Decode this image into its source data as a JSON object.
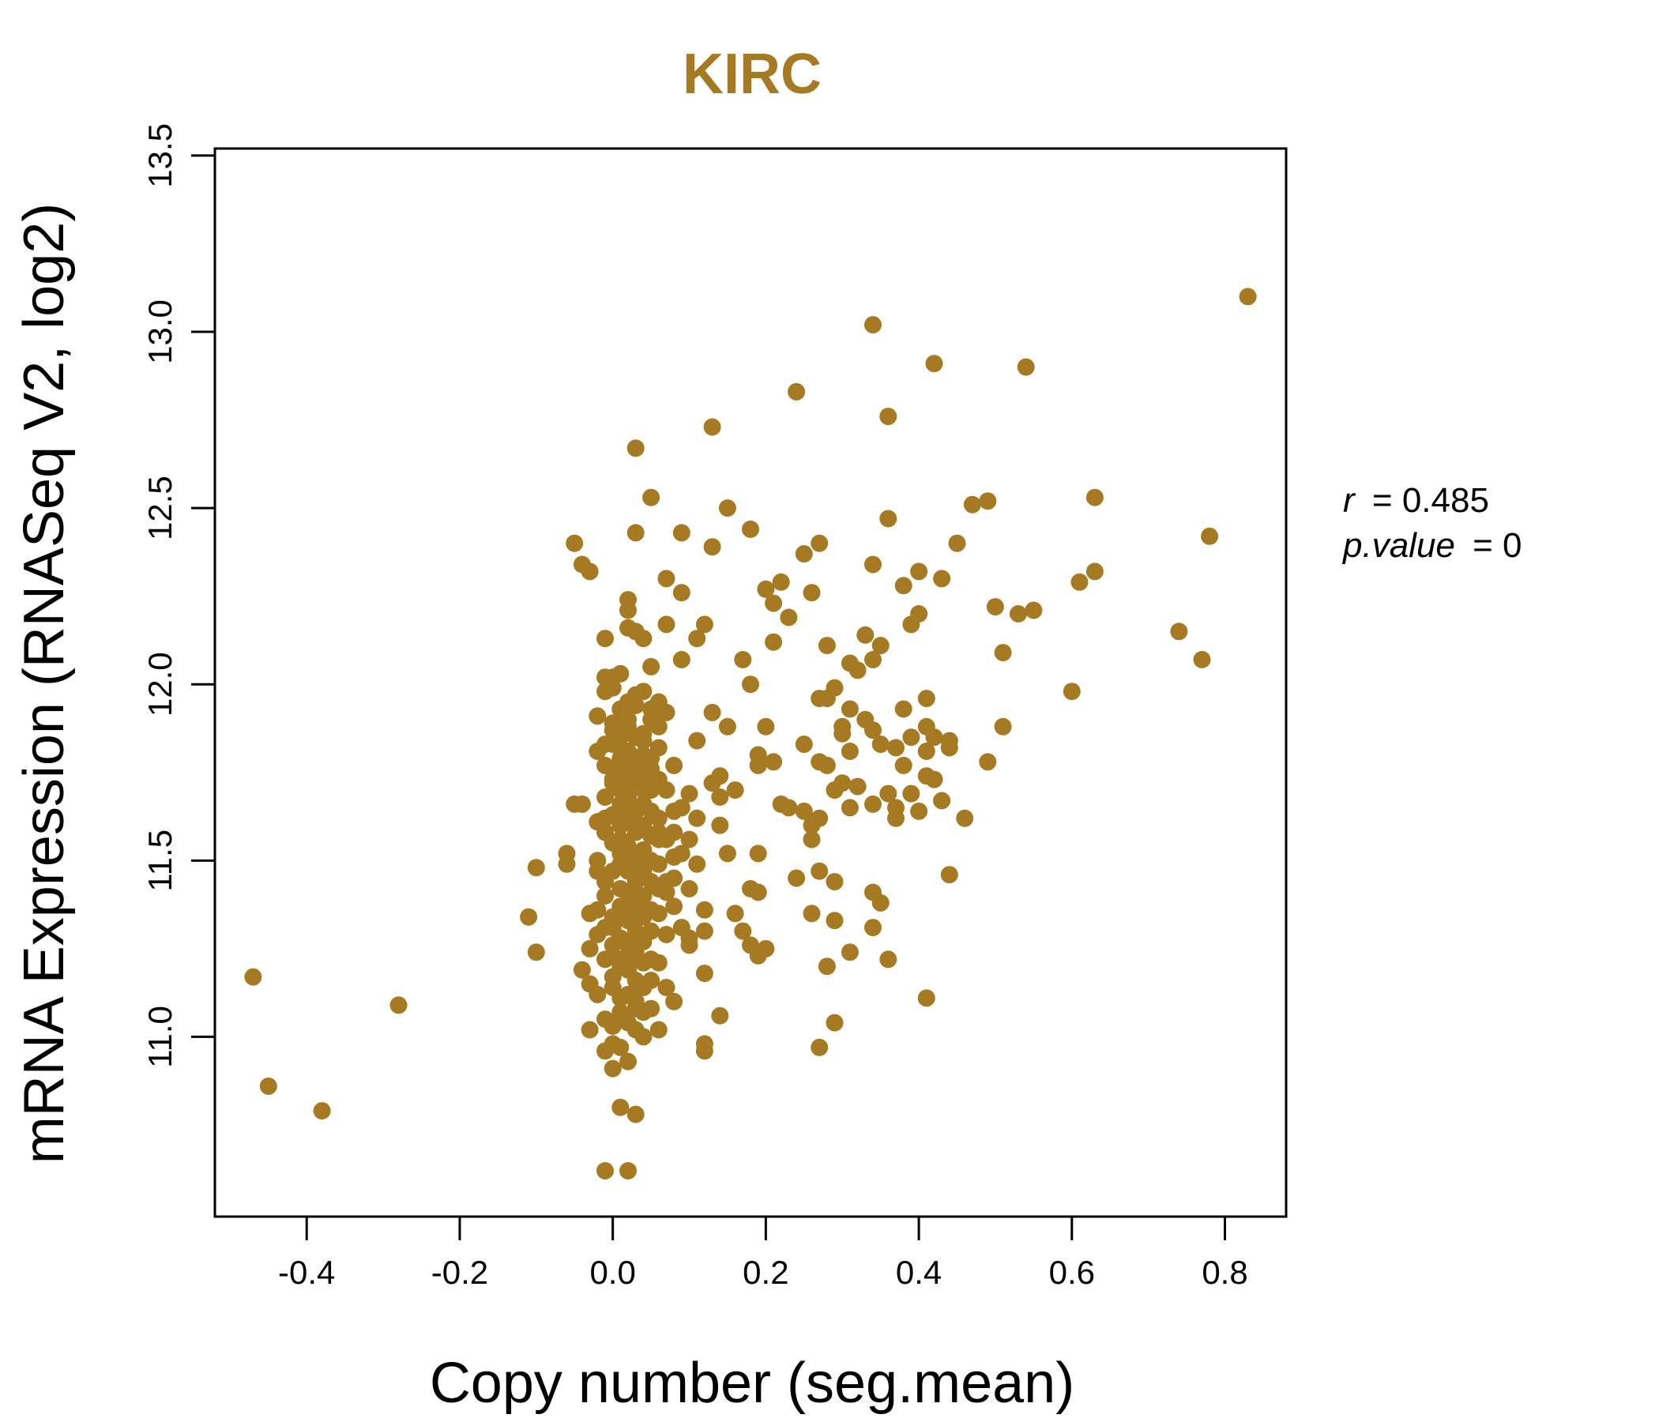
{
  "chart_data": {
    "type": "scatter",
    "title": "KIRC",
    "xlabel": "Copy number (seg.mean)",
    "ylabel": "mRNA Expression (RNASeq V2, log2)",
    "xlim": [
      -0.52,
      0.88
    ],
    "ylim": [
      10.49,
      13.52
    ],
    "x_ticks": [
      -0.4,
      -0.2,
      0.0,
      0.2,
      0.4,
      0.6,
      0.8
    ],
    "x_tick_labels": [
      "-0.4",
      "-0.2",
      "0.0",
      "0.2",
      "0.4",
      "0.6",
      "0.8"
    ],
    "y_ticks": [
      11.0,
      11.5,
      12.0,
      12.5,
      13.0,
      13.5
    ],
    "y_tick_labels": [
      "11.0",
      "11.5",
      "12.0",
      "12.5",
      "13.0",
      "13.5"
    ],
    "grid": false,
    "point_color": "#A67A22",
    "stats": {
      "r_label": "r",
      "r_value": "0.485",
      "p_label": "p.value",
      "p_value": "0"
    },
    "series": [
      {
        "x": [
          -0.47,
          -0.45,
          -0.38,
          -0.28,
          -0.11,
          -0.1,
          -0.1,
          -0.06,
          -0.06,
          -0.05,
          -0.05,
          -0.04,
          -0.04,
          -0.04,
          -0.03,
          -0.03,
          -0.03,
          -0.03,
          -0.03,
          -0.02,
          -0.02,
          -0.02,
          -0.02,
          -0.02,
          -0.02,
          -0.02,
          -0.02,
          -0.01,
          -0.01,
          -0.01,
          -0.01,
          -0.01,
          -0.01,
          -0.01,
          -0.01,
          -0.01,
          -0.01,
          -0.01,
          -0.01,
          -0.01,
          -0.01,
          -0.01,
          0.0,
          0.0,
          0.0,
          0.0,
          0.0,
          0.0,
          0.0,
          0.0,
          0.0,
          0.0,
          0.0,
          0.0,
          0.0,
          0.0,
          0.0,
          0.0,
          0.0,
          0.0,
          0.0,
          0.0,
          0.01,
          0.01,
          0.01,
          0.01,
          0.01,
          0.01,
          0.01,
          0.01,
          0.01,
          0.01,
          0.01,
          0.01,
          0.01,
          0.01,
          0.01,
          0.01,
          0.01,
          0.01,
          0.01,
          0.01,
          0.01,
          0.01,
          0.01,
          0.01,
          0.02,
          0.02,
          0.02,
          0.02,
          0.02,
          0.02,
          0.02,
          0.02,
          0.02,
          0.02,
          0.02,
          0.02,
          0.02,
          0.02,
          0.02,
          0.02,
          0.02,
          0.02,
          0.02,
          0.02,
          0.02,
          0.02,
          0.02,
          0.02,
          0.03,
          0.03,
          0.03,
          0.03,
          0.03,
          0.03,
          0.03,
          0.03,
          0.03,
          0.03,
          0.03,
          0.03,
          0.03,
          0.03,
          0.03,
          0.03,
          0.03,
          0.03,
          0.03,
          0.03,
          0.03,
          0.03,
          0.03,
          0.04,
          0.04,
          0.04,
          0.04,
          0.04,
          0.04,
          0.04,
          0.04,
          0.04,
          0.04,
          0.04,
          0.04,
          0.04,
          0.04,
          0.04,
          0.04,
          0.04,
          0.04,
          0.04,
          0.04,
          0.05,
          0.05,
          0.05,
          0.05,
          0.05,
          0.05,
          0.05,
          0.05,
          0.05,
          0.05,
          0.05,
          0.05,
          0.05,
          0.05,
          0.05,
          0.05,
          0.06,
          0.06,
          0.06,
          0.06,
          0.06,
          0.06,
          0.06,
          0.06,
          0.06,
          0.06,
          0.06,
          0.06,
          0.07,
          0.07,
          0.07,
          0.07,
          0.07,
          0.07,
          0.07,
          0.07,
          0.07,
          0.08,
          0.08,
          0.08,
          0.08,
          0.08,
          0.08,
          0.08,
          0.09,
          0.09,
          0.09,
          0.09,
          0.09,
          0.09,
          0.1,
          0.1,
          0.1,
          0.1,
          0.1,
          0.11,
          0.11,
          0.11,
          0.11,
          0.12,
          0.12,
          0.12,
          0.12,
          0.12,
          0.12,
          0.13,
          0.13,
          0.13,
          0.13,
          0.14,
          0.14,
          0.14,
          0.14,
          0.15,
          0.15,
          0.15,
          0.16,
          0.16,
          0.17,
          0.17,
          0.18,
          0.18,
          0.18,
          0.18,
          0.19,
          0.19,
          0.19,
          0.19,
          0.19,
          0.2,
          0.2,
          0.2,
          0.21,
          0.21,
          0.21,
          0.22,
          0.22,
          0.23,
          0.23,
          0.24,
          0.24,
          0.25,
          0.25,
          0.25,
          0.26,
          0.26,
          0.26,
          0.26,
          0.27,
          0.27,
          0.27,
          0.27,
          0.27,
          0.27,
          0.28,
          0.28,
          0.28,
          0.28,
          0.29,
          0.29,
          0.29,
          0.29,
          0.29,
          0.3,
          0.3,
          0.3,
          0.31,
          0.31,
          0.31,
          0.31,
          0.31,
          0.32,
          0.32,
          0.33,
          0.33,
          0.34,
          0.34,
          0.34,
          0.34,
          0.34,
          0.34,
          0.34,
          0.35,
          0.35,
          0.35,
          0.36,
          0.36,
          0.36,
          0.36,
          0.37,
          0.37,
          0.37,
          0.38,
          0.38,
          0.38,
          0.39,
          0.39,
          0.39,
          0.4,
          0.4,
          0.4,
          0.41,
          0.41,
          0.41,
          0.41,
          0.41,
          0.42,
          0.42,
          0.42,
          0.43,
          0.43,
          0.44,
          0.44,
          0.44,
          0.45,
          0.46,
          0.47,
          0.49,
          0.49,
          0.5,
          0.51,
          0.51,
          0.53,
          0.54,
          0.55,
          0.6,
          0.61,
          0.63,
          0.63,
          0.74,
          0.77,
          0.78,
          0.83
        ],
        "y": [
          11.17,
          10.86,
          10.79,
          11.09,
          11.34,
          11.24,
          11.48,
          11.52,
          11.49,
          11.66,
          12.4,
          12.34,
          11.19,
          11.66,
          12.32,
          11.35,
          11.02,
          11.15,
          11.25,
          11.47,
          11.91,
          11.61,
          11.36,
          11.12,
          11.29,
          11.5,
          11.81,
          12.13,
          11.98,
          11.83,
          11.77,
          11.62,
          11.44,
          11.31,
          11.22,
          10.96,
          10.62,
          12.02,
          11.68,
          11.58,
          11.4,
          11.05,
          11.26,
          11.83,
          11.89,
          11.72,
          11.55,
          11.34,
          11.17,
          10.91,
          11.99,
          11.76,
          11.63,
          11.47,
          11.23,
          11.03,
          12.02,
          11.87,
          11.73,
          11.31,
          11.14,
          10.98,
          11.93,
          11.79,
          11.66,
          11.52,
          11.37,
          11.22,
          11.07,
          10.8,
          11.85,
          11.7,
          11.56,
          11.42,
          11.28,
          11.11,
          10.97,
          11.78,
          11.64,
          11.49,
          11.36,
          11.2,
          11.06,
          12.03,
          11.82,
          11.6,
          12.24,
          12.16,
          11.88,
          11.74,
          11.61,
          11.47,
          11.33,
          11.19,
          11.04,
          10.93,
          11.95,
          11.81,
          11.68,
          11.54,
          11.41,
          11.26,
          11.12,
          10.62,
          11.69,
          11.35,
          12.21,
          11.9,
          11.76,
          11.63,
          11.49,
          11.36,
          11.22,
          11.08,
          10.78,
          11.97,
          11.85,
          11.71,
          11.58,
          11.44,
          11.3,
          11.16,
          11.02,
          11.77,
          11.64,
          11.51,
          11.38,
          11.24,
          11.1,
          12.67,
          12.43,
          12.15,
          11.94,
          11.8,
          11.66,
          11.53,
          11.4,
          11.27,
          11.14,
          11.0,
          11.86,
          11.73,
          11.6,
          11.47,
          11.34,
          11.21,
          11.07,
          11.59,
          11.46,
          12.13,
          11.98,
          11.84,
          11.7,
          11.57,
          11.44,
          11.3,
          11.16,
          11.93,
          11.79,
          11.64,
          11.5,
          11.36,
          11.22,
          11.08,
          11.7,
          12.53,
          12.05,
          11.9,
          11.76,
          11.62,
          11.49,
          11.35,
          11.21,
          11.95,
          11.82,
          11.56,
          11.42,
          11.02,
          11.88,
          11.73,
          11.58,
          11.44,
          11.29,
          11.14,
          11.92,
          11.7,
          11.56,
          11.41,
          12.3,
          12.17,
          11.77,
          11.64,
          11.51,
          11.37,
          11.1,
          11.58,
          11.45,
          11.31,
          12.43,
          12.26,
          12.07,
          11.65,
          11.52,
          11.28,
          11.69,
          11.56,
          11.42,
          11.26,
          12.13,
          11.84,
          11.62,
          11.49,
          11.36,
          11.18,
          10.98,
          12.17,
          11.3,
          10.96,
          12.39,
          12.73,
          11.72,
          11.92,
          11.68,
          11.6,
          11.06,
          11.74,
          11.52,
          12.5,
          11.88,
          11.7,
          11.35,
          11.3,
          12.07,
          12.44,
          12.0,
          11.26,
          11.42,
          11.8,
          11.23,
          11.52,
          11.41,
          11.77,
          11.88,
          12.27,
          11.25,
          12.23,
          12.12,
          11.78,
          11.66,
          12.29,
          12.19,
          11.65,
          12.83,
          11.45,
          11.83,
          11.64,
          12.37,
          12.26,
          11.56,
          11.6,
          11.35,
          12.4,
          11.96,
          11.78,
          11.62,
          11.47,
          10.97,
          12.11,
          11.96,
          11.77,
          11.2,
          11.99,
          11.7,
          11.44,
          11.33,
          11.04,
          11.88,
          11.72,
          11.86,
          12.06,
          11.93,
          11.81,
          11.65,
          11.24,
          12.04,
          11.71,
          12.14,
          11.9,
          13.02,
          12.34,
          12.07,
          11.87,
          11.66,
          11.41,
          11.31,
          12.11,
          11.83,
          11.38,
          12.47,
          12.76,
          11.69,
          11.22,
          11.82,
          11.65,
          11.62,
          12.28,
          11.93,
          11.77,
          12.17,
          11.85,
          11.69,
          12.2,
          12.32,
          11.64,
          11.96,
          11.88,
          11.74,
          11.11,
          11.81,
          12.91,
          11.85,
          11.73,
          11.67,
          12.3,
          11.84,
          11.82,
          11.46,
          12.4,
          11.62,
          12.51,
          11.78,
          12.52,
          12.22,
          11.88,
          12.09,
          12.2,
          12.9,
          12.21,
          11.98,
          12.29,
          12.53,
          12.32,
          12.15,
          12.07,
          12.42,
          13.1
        ]
      }
    ]
  }
}
